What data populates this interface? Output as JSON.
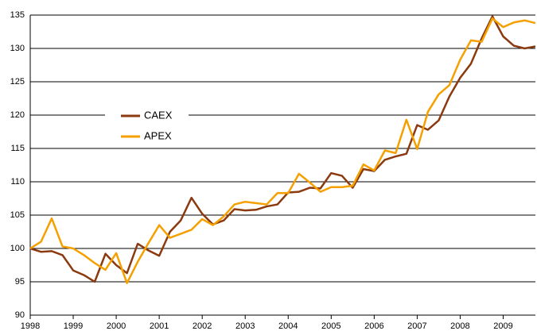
{
  "chart_data": {
    "type": "line",
    "x": [
      1998,
      1998.25,
      1998.5,
      1998.75,
      1999,
      1999.25,
      1999.5,
      1999.75,
      2000,
      2000.25,
      2000.5,
      2000.75,
      2001,
      2001.25,
      2001.5,
      2001.75,
      2002,
      2002.25,
      2002.5,
      2002.75,
      2003,
      2003.25,
      2003.5,
      2003.75,
      2004,
      2004.25,
      2004.5,
      2004.75,
      2005,
      2005.25,
      2005.5,
      2005.75,
      2006,
      2006.25,
      2006.5,
      2006.75,
      2007,
      2007.25,
      2007.5,
      2007.75,
      2008,
      2008.25,
      2008.5,
      2008.75,
      2009,
      2009.25,
      2009.5,
      2009.75
    ],
    "series": [
      {
        "name": "CAEX",
        "color": "#8b3a0f",
        "values": [
          100,
          99.5,
          99.6,
          99,
          96.7,
          96,
          95,
          99.2,
          97.5,
          96.3,
          100.7,
          99.7,
          98.9,
          102.5,
          104.2,
          107.6,
          105.2,
          103.6,
          104.2,
          105.9,
          105.7,
          105.8,
          106.3,
          106.6,
          108.4,
          108.5,
          109.1,
          109,
          111.3,
          110.9,
          109.1,
          111.9,
          111.6,
          113.3,
          113.8,
          114.2,
          118.5,
          117.8,
          119.2,
          122.8,
          125.6,
          127.7,
          131.5,
          134.8,
          131.8,
          130.4,
          130,
          130.3
        ]
      },
      {
        "name": "APEX",
        "color": "#f5a000",
        "values": [
          100,
          101,
          104.5,
          100.3,
          100,
          99,
          97.8,
          96.8,
          99.3,
          94.8,
          98,
          100.8,
          103.5,
          101.6,
          102.2,
          102.8,
          104.4,
          103.5,
          104.8,
          106.6,
          107,
          106.8,
          106.6,
          108.3,
          108.3,
          111.2,
          109.9,
          108.5,
          109.2,
          109.2,
          109.4,
          112.6,
          111.7,
          114.7,
          114.3,
          119.3,
          114.9,
          120.5,
          123.1,
          124.5,
          128.3,
          131.2,
          131,
          134.5,
          133.2,
          133.9,
          134.2,
          133.8
        ]
      }
    ],
    "xlim": [
      1998,
      2009.75
    ],
    "xticks": [
      1998,
      1999,
      2000,
      2001,
      2002,
      2003,
      2004,
      2005,
      2006,
      2007,
      2008,
      2009
    ],
    "ylim": [
      90,
      135
    ],
    "yticks": [
      90,
      95,
      100,
      105,
      110,
      115,
      120,
      125,
      130,
      135
    ],
    "grid": true
  }
}
